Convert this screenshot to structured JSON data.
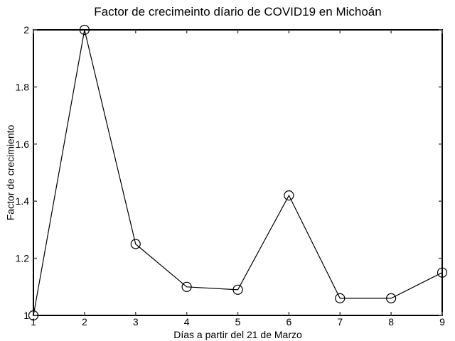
{
  "chart_data": {
    "type": "line",
    "title": "Factor de crecimeinto díario de COVID19 en Michoán",
    "xlabel": "Días a partir del 21 de Marzo",
    "ylabel": "Factor de crecimiento",
    "x": [
      1,
      2,
      3,
      4,
      5,
      6,
      7,
      8,
      9
    ],
    "y": [
      1.0,
      2.0,
      1.25,
      1.1,
      1.09,
      1.42,
      1.06,
      1.06,
      1.15
    ],
    "xlim": [
      1,
      9
    ],
    "ylim": [
      1,
      2
    ],
    "xticks": [
      1,
      2,
      3,
      4,
      5,
      6,
      7,
      8,
      9
    ],
    "xtick_labels": [
      "1",
      "2",
      "3",
      "4",
      "5",
      "6",
      "7",
      "8",
      "9"
    ],
    "yticks": [
      1,
      1.2,
      1.4,
      1.6,
      1.8,
      2
    ],
    "ytick_labels": [
      "1",
      "1.2",
      "1.4",
      "1.6",
      "1.8",
      "2"
    ],
    "marker": "open-circle",
    "grid": false,
    "legend_position": "none",
    "line_color": "#000000",
    "marker_color": "#000000",
    "axis_color": "#000000",
    "tick_color": "#555555",
    "text_color": "#000000",
    "background": "#ffffff"
  }
}
